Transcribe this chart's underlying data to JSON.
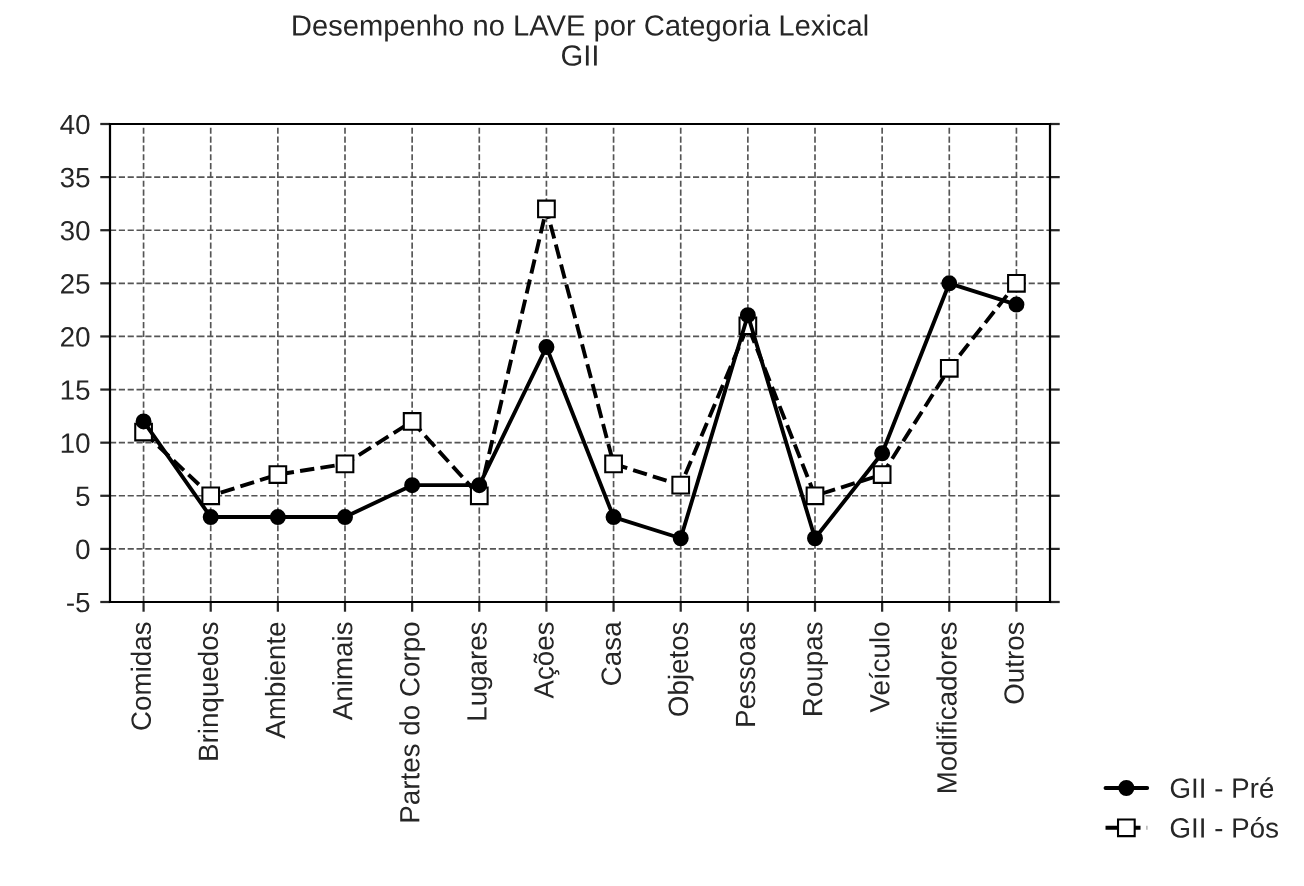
{
  "chart_data": {
    "type": "line",
    "title": "Desempenho no LAVE por Categoria Lexical",
    "subtitle": "GII",
    "categories": [
      "Comidas",
      "Brinquedos",
      "Ambiente",
      "Animais",
      "Partes do Corpo",
      "Lugares",
      "Ações",
      "Casa",
      "Objetos",
      "Pessoas",
      "Roupas",
      "Veículo",
      "Modificadores",
      "Outros"
    ],
    "series": [
      {
        "name": "GII - Pré",
        "color": "#000000",
        "marker": "circle",
        "line_style": "solid",
        "values": [
          12,
          3,
          3,
          3,
          6,
          6,
          19,
          3,
          1,
          22,
          1,
          9,
          25,
          23
        ]
      },
      {
        "name": "GII - Pós",
        "color": "#000000",
        "marker": "square",
        "line_style": "dashed",
        "values": [
          11,
          5,
          7,
          8,
          12,
          5,
          32,
          8,
          6,
          21,
          5,
          7,
          17,
          25
        ]
      }
    ],
    "ylim": [
      -5,
      40
    ],
    "yticks": [
      -5,
      0,
      5,
      10,
      15,
      20,
      25,
      30,
      35,
      40
    ],
    "grid": true,
    "legend": "bottom right"
  }
}
